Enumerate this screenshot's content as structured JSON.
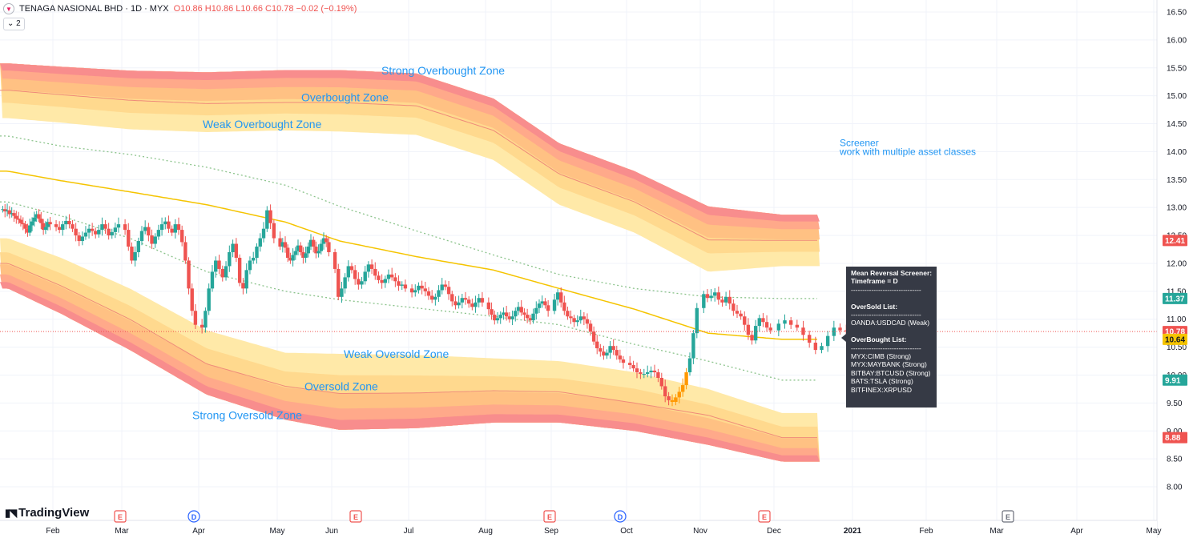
{
  "legend": {
    "symbol": "TENAGA NASIONAL BHD · 1D · MYX",
    "ohlc": "O10.86 H10.86 L10.66 C10.78 −0.02 (−0.19%)"
  },
  "indicator_button": "2",
  "watermark": "TradingView",
  "screener": {
    "lines": [
      "Mean Reversal Screener:",
      "Timeframe = D",
      "-------------------------------",
      "",
      "OverSold List:",
      "-------------------------------",
      "OANDA:USDCAD (Weak)",
      "",
      "OverBought List:",
      "-------------------------------",
      "MYX:CIMB (Strong)",
      "MYX:MAYBANK (Strong)",
      "BITBAY:BTCUSD (Strong)",
      "BATS:TSLA (Strong)",
      "BITFINEX:XRPUSD"
    ]
  },
  "chart_data": {
    "type": "candlestick",
    "ylim": [
      7.8,
      16.6
    ],
    "y_ticks": [
      "8.00",
      "8.50",
      "9.00",
      "9.50",
      "10.00",
      "10.50",
      "11.00",
      "11.50",
      "12.00",
      "12.50",
      "13.00",
      "13.50",
      "14.00",
      "14.50",
      "15.00",
      "15.50",
      "16.00",
      "16.50"
    ],
    "x_ticks": [
      "Feb",
      "Mar",
      "Apr",
      "May",
      "Jun",
      "Jul",
      "Aug",
      "Sep",
      "Oct",
      "Nov",
      "Dec",
      "2021",
      "Feb",
      "Mar",
      "Apr",
      "May"
    ],
    "x_ticks_bold": [
      "2021"
    ],
    "price_labels": [
      {
        "text": "12.41",
        "value": 12.41,
        "color": "#ef5350"
      },
      {
        "text": "11.37",
        "value": 11.37,
        "color": "#26a69a"
      },
      {
        "text": "10.78",
        "value": 10.78,
        "color": "#ef5350"
      },
      {
        "text": "10.64",
        "value": 10.64,
        "color": "#f5c400"
      },
      {
        "text": "9.91",
        "value": 9.91,
        "color": "#26a69a"
      },
      {
        "text": "8.88",
        "value": 8.88,
        "color": "#ef5350"
      }
    ],
    "current_price": 10.78,
    "annotations": [
      {
        "text": "Strong Overbought Zone",
        "x": "Jul",
        "y": 15.45
      },
      {
        "text": "Overbought Zone",
        "x": "May",
        "y": 14.97
      },
      {
        "text": "Weak Overbought Zone",
        "x": "Apr",
        "y": 14.49
      },
      {
        "text": "Screener",
        "x": "Dec",
        "y": 14.17
      },
      {
        "text": "work with multiple asset classes",
        "x": "Dec",
        "y": 14.01
      },
      {
        "text": "Weak Oversold Zone",
        "x": "Jun",
        "y": 10.38
      },
      {
        "text": "Oversold Zone",
        "x": "May",
        "y": 9.8
      },
      {
        "text": "Strong Oversold Zone",
        "x": "Apr",
        "y": 9.28
      }
    ],
    "events": [
      {
        "type": "E",
        "x": "Mar"
      },
      {
        "type": "D",
        "x": "Apr"
      },
      {
        "type": "E",
        "x": "Jun"
      },
      {
        "type": "E",
        "x": "Sep"
      },
      {
        "type": "D",
        "x": "Oct"
      },
      {
        "type": "E",
        "x": "Dec"
      },
      {
        "type": "E",
        "x": "Feb 2021",
        "future": true
      }
    ],
    "series": [
      {
        "name": "Mean",
        "color": "#f5c400",
        "x": [
          "Jan",
          "Feb",
          "Mar",
          "Apr",
          "May",
          "Jun",
          "Jul",
          "Aug",
          "Sep",
          "Oct",
          "Nov",
          "Dec"
        ],
        "values": [
          13.65,
          13.48,
          13.28,
          13.05,
          12.74,
          12.4,
          12.12,
          11.88,
          11.55,
          11.18,
          10.75,
          10.64
        ]
      },
      {
        "name": "Upper band",
        "color": "#8bc38b",
        "x": [
          "Jan",
          "Feb",
          "Mar",
          "Apr",
          "May",
          "Jun",
          "Jul",
          "Aug",
          "Sep",
          "Oct",
          "Nov",
          "Dec"
        ],
        "values": [
          14.28,
          14.1,
          13.95,
          13.72,
          13.4,
          13.02,
          12.58,
          12.15,
          11.8,
          11.55,
          11.4,
          11.37
        ]
      },
      {
        "name": "Lower band",
        "color": "#8bc38b",
        "x": [
          "Jan",
          "Feb",
          "Mar",
          "Apr",
          "May",
          "Jun",
          "Jul",
          "Aug",
          "Sep",
          "Oct",
          "Nov",
          "Dec"
        ],
        "values": [
          13.1,
          12.85,
          12.45,
          11.85,
          11.5,
          11.35,
          11.2,
          11.05,
          10.9,
          10.55,
          10.25,
          9.91
        ]
      },
      {
        "name": "Overbought zone upper",
        "x": [
          "Jan",
          "Feb",
          "Mar",
          "Apr",
          "May",
          "Jun",
          "Jul",
          "Aug",
          "Sep",
          "Oct",
          "Nov",
          "Dec"
        ],
        "values": [
          15.58,
          15.52,
          15.45,
          15.42,
          15.46,
          15.46,
          15.4,
          14.95,
          14.15,
          13.65,
          13.02,
          12.87
        ]
      },
      {
        "name": "Overbought zone mid",
        "x": [
          "Jan",
          "Feb",
          "Mar",
          "Apr",
          "May",
          "Jun",
          "Jul",
          "Aug",
          "Sep",
          "Oct",
          "Nov",
          "Dec"
        ],
        "values": [
          15.1,
          15.02,
          14.92,
          14.86,
          14.88,
          14.88,
          14.82,
          14.38,
          13.6,
          13.1,
          12.42,
          12.41
        ]
      },
      {
        "name": "Overbought zone lower",
        "x": [
          "Jan",
          "Feb",
          "Mar",
          "Apr",
          "May",
          "Jun",
          "Jul",
          "Aug",
          "Sep",
          "Oct",
          "Nov",
          "Dec"
        ],
        "values": [
          14.6,
          14.52,
          14.4,
          14.35,
          14.38,
          14.36,
          14.3,
          13.85,
          13.05,
          12.55,
          11.85,
          11.95
        ]
      },
      {
        "name": "Oversold zone upper",
        "x": [
          "Jan",
          "Feb",
          "Mar",
          "Apr",
          "May",
          "Jun",
          "Jul",
          "Aug",
          "Sep",
          "Oct",
          "Nov",
          "Dec"
        ],
        "values": [
          12.45,
          12.1,
          11.55,
          10.8,
          10.4,
          10.38,
          10.36,
          10.3,
          10.25,
          10.05,
          9.75,
          9.32
        ]
      },
      {
        "name": "Oversold zone mid",
        "x": [
          "Jan",
          "Feb",
          "Mar",
          "Apr",
          "May",
          "Jun",
          "Jul",
          "Aug",
          "Sep",
          "Oct",
          "Nov",
          "Dec"
        ],
        "values": [
          12.0,
          11.6,
          11.0,
          10.2,
          9.8,
          9.67,
          9.68,
          9.72,
          9.7,
          9.5,
          9.28,
          8.88
        ]
      },
      {
        "name": "Oversold zone lower",
        "x": [
          "Jan",
          "Feb",
          "Mar",
          "Apr",
          "May",
          "Jun",
          "Jul",
          "Aug",
          "Sep",
          "Oct",
          "Nov",
          "Dec"
        ],
        "values": [
          11.55,
          11.1,
          10.45,
          9.65,
          9.2,
          9.02,
          9.05,
          9.15,
          9.15,
          9.0,
          8.75,
          8.45
        ]
      }
    ],
    "candles": [
      {
        "date": "Jan",
        "close": [
          12.97,
          12.93,
          12.95,
          12.88,
          12.9,
          12.85,
          12.8,
          12.78,
          12.72,
          12.7,
          12.62,
          12.55,
          12.68,
          12.75,
          12.82,
          12.88,
          12.8,
          12.72,
          12.6,
          12.65,
          12.74,
          12.7
        ]
      },
      {
        "date": "Feb",
        "close": [
          12.65,
          12.6,
          12.7,
          12.76,
          12.7,
          12.62,
          12.5,
          12.4,
          12.48,
          12.55,
          12.62,
          12.58,
          12.52,
          12.6,
          12.7,
          12.62,
          12.5,
          12.56,
          12.64,
          12.7
        ]
      },
      {
        "date": "Mar",
        "close": [
          12.6,
          12.3,
          12.05,
          12.2,
          12.4,
          12.58,
          12.65,
          12.5,
          12.35,
          12.48,
          12.6,
          12.7,
          12.75,
          12.62,
          12.55,
          12.7,
          12.6,
          12.38,
          12.05,
          11.55,
          11.15,
          10.9
        ]
      },
      {
        "date": "Apr",
        "close": [
          10.85,
          11.15,
          11.55,
          11.85,
          12.05,
          11.9,
          11.75,
          11.95,
          12.2,
          12.35,
          12.1,
          11.65,
          11.55,
          11.88,
          12.05,
          12.1,
          12.3,
          12.45,
          12.62,
          12.95,
          12.72,
          12.45
        ]
      },
      {
        "date": "May",
        "close": [
          12.3,
          12.38,
          12.28,
          12.1,
          12.05,
          12.15,
          12.22,
          12.32,
          12.2,
          12.1,
          12.18,
          12.3,
          12.42,
          12.3,
          12.18,
          12.22,
          12.35,
          12.45,
          12.38,
          12.2
        ]
      },
      {
        "date": "Jun",
        "close": [
          11.9,
          11.4,
          11.55,
          11.75,
          11.95,
          11.88,
          11.72,
          11.62,
          11.68,
          11.85,
          11.98,
          11.9,
          11.78,
          11.7,
          11.65,
          11.72,
          11.8,
          11.75,
          11.68,
          11.6,
          11.62,
          11.55
        ]
      },
      {
        "date": "Jul",
        "close": [
          11.48,
          11.52,
          11.6,
          11.55,
          11.5,
          11.42,
          11.35,
          11.4,
          11.52,
          11.62,
          11.58,
          11.45,
          11.32,
          11.25,
          11.3,
          11.38,
          11.35,
          11.28,
          11.22,
          11.3,
          11.38,
          11.3
        ]
      },
      {
        "date": "Aug",
        "close": [
          11.18,
          11.08,
          10.98,
          11.02,
          11.08,
          11.12,
          11.05,
          11.0,
          11.05,
          11.15,
          11.22,
          11.12,
          11.08,
          11.02,
          10.98,
          11.1,
          11.2,
          11.28,
          11.32,
          11.25,
          11.15
        ]
      },
      {
        "date": "Sep",
        "close": [
          11.35,
          11.48,
          11.3,
          11.15,
          11.05,
          11.02,
          10.95,
          10.98,
          11.05,
          11.0,
          10.92,
          10.78,
          10.6,
          10.48,
          10.42,
          10.35,
          10.4,
          10.52,
          10.45,
          10.35,
          10.28,
          10.22
        ]
      },
      {
        "date": "Oct",
        "close": [
          10.18,
          10.12,
          10.05,
          10.02,
          10.02,
          10.05,
          10.08,
          10.05,
          9.95,
          9.8,
          9.62,
          9.55,
          9.52,
          9.6,
          9.7,
          9.82,
          10.05,
          10.3,
          10.75,
          11.2
        ]
      },
      {
        "date": "Nov",
        "close": [
          11.45,
          11.38,
          11.42,
          11.48,
          11.35,
          11.3,
          11.4,
          11.28,
          11.15,
          11.1,
          11.05,
          10.9,
          10.72,
          10.62,
          10.88,
          11.02,
          10.95,
          10.85,
          10.8
        ]
      },
      {
        "date": "Dec",
        "close": [
          10.92,
          10.98,
          10.9,
          10.85,
          10.72,
          10.58,
          10.45,
          10.52,
          10.7,
          10.85,
          10.8,
          10.78
        ]
      }
    ]
  }
}
